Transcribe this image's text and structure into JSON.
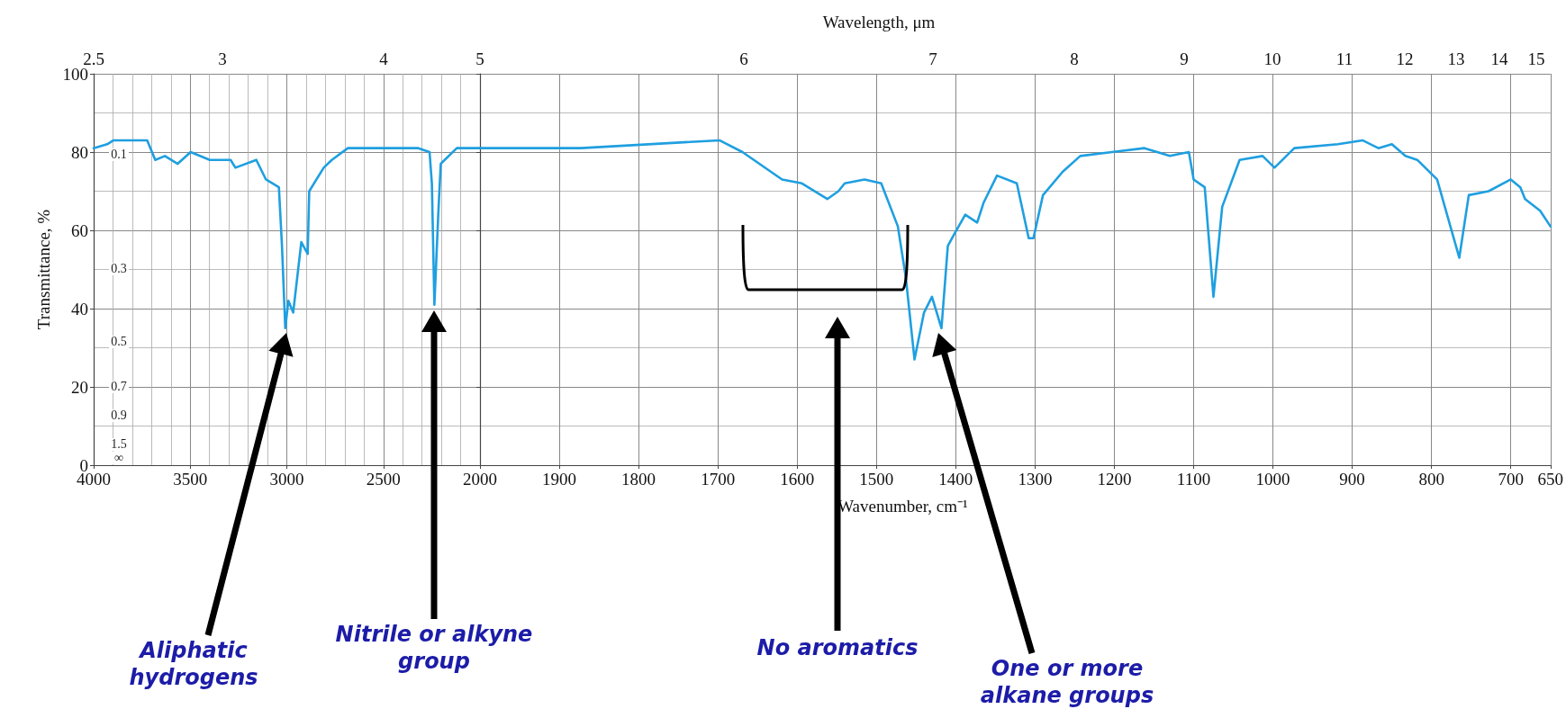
{
  "chart_data": [
    {
      "type": "line",
      "color": "#1f9fe0",
      "ylabel": "Transmittance, %",
      "grid": true,
      "x": [
        4000,
        3930,
        3897,
        3748,
        3723,
        3681,
        3631,
        3565,
        3498,
        3399,
        3291,
        3266,
        3158,
        3108,
        3041,
        3025,
        3008,
        2992,
        2967,
        2925,
        2892,
        2884,
        2809,
        2767,
        2684,
        2402,
        2319,
        2261,
        2249,
        2236,
        2216,
        2203,
        2120,
        2000
      ],
      "values": [
        81,
        82,
        83,
        83,
        83,
        78,
        79,
        77,
        80,
        78,
        78,
        76,
        78,
        73,
        71,
        56,
        35,
        42,
        39,
        57,
        54,
        70,
        76,
        78,
        81,
        81,
        81,
        80,
        72,
        41,
        64,
        77,
        81,
        81
      ],
      "xlim": [
        4000,
        2000
      ],
      "xticks": [
        4000,
        3500,
        3000,
        2500,
        2000
      ],
      "ylim": [
        0,
        100
      ],
      "yticks": [
        0,
        20,
        40,
        60,
        80,
        100
      ],
      "annotations": [
        "Aliphatic hydrogens",
        "Nitrile or alkyne group",
        "2.5",
        "3",
        "4",
        "0.1",
        "0.3",
        "0.5",
        "0.7",
        "0.9",
        "1.5",
        "∞"
      ]
    },
    {
      "type": "line",
      "color": "#1f9fe0",
      "xlabel": "Wavenumber, cm⁻¹",
      "grid": true,
      "tick_labels": "x",
      "x": [
        2000,
        1873,
        1698,
        1669,
        1619,
        1594,
        1562,
        1548,
        1540,
        1515,
        1494,
        1473,
        1463,
        1452,
        1440,
        1430,
        1418,
        1410,
        1402,
        1388,
        1373,
        1365,
        1348,
        1323,
        1308,
        1302,
        1290,
        1265,
        1243,
        1203,
        1162,
        1130,
        1106,
        1100,
        1086,
        1075,
        1064,
        1042,
        1013,
        998,
        973,
        918,
        887,
        867,
        850,
        833,
        818,
        793,
        765,
        753,
        728,
        700,
        688,
        682,
        663,
        650
      ],
      "values": [
        81,
        81,
        83,
        80,
        73,
        72,
        68,
        70,
        72,
        73,
        72,
        61,
        48,
        27,
        39,
        43,
        35,
        56,
        59,
        64,
        62,
        67,
        74,
        72,
        58,
        58,
        69,
        75,
        79,
        80,
        81,
        79,
        80,
        73,
        71,
        43,
        66,
        78,
        79,
        76,
        81,
        82,
        83,
        81,
        82,
        79,
        78,
        73,
        53,
        69,
        70,
        73,
        71,
        68,
        65,
        61
      ],
      "xlim": [
        2000,
        650
      ],
      "xticks": [
        1900,
        1800,
        1700,
        1600,
        1500,
        1400,
        1300,
        1200,
        1100,
        1000,
        900,
        800,
        700,
        650
      ],
      "ylim": [
        0,
        100
      ],
      "yticks": [
        0,
        20,
        40,
        60,
        80,
        100
      ],
      "annotations": [
        "Wavelength, μm",
        "5",
        "6",
        "7",
        "8",
        "9",
        "10",
        "11",
        "12",
        "13",
        "14",
        "15",
        "No aromatics",
        "One or more alkane groups"
      ]
    }
  ]
}
